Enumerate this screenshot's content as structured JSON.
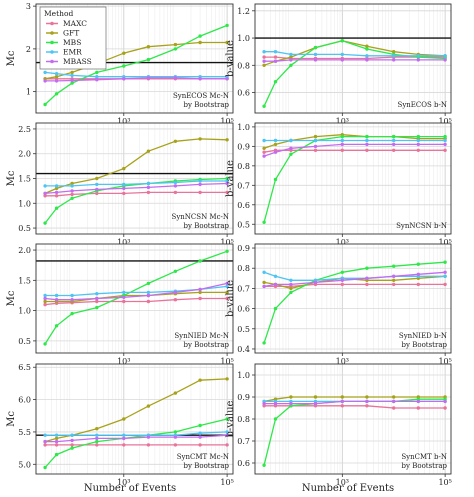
{
  "x_axis_label": "Number of Events",
  "legend": {
    "title": "Method",
    "items": [
      {
        "name": "MAXC",
        "color": "#e8749a"
      },
      {
        "name": "GFT",
        "color": "#a8a21a"
      },
      {
        "name": "MBS",
        "color": "#2ee84a"
      },
      {
        "name": "EMR",
        "color": "#4fc4f2"
      },
      {
        "name": "MBASS",
        "color": "#c46cf0"
      }
    ]
  },
  "chart_data": [
    {
      "type": "line",
      "xscale": "log",
      "xlim": [
        20,
        130000
      ],
      "xticks": [
        {
          "v": 1000,
          "label": "10³"
        },
        {
          "v": 100000,
          "label": "10⁵"
        }
      ],
      "ylabel": "Mc",
      "ylim": [
        0.5,
        3.05
      ],
      "yticks": [
        1,
        2,
        3
      ],
      "hline": 1.68,
      "annotation": [
        "SynECOS Mc-N",
        "by Bootstrap"
      ],
      "x": [
        30,
        50,
        100,
        300,
        1000,
        3000,
        10000,
        30000,
        100000
      ],
      "series": [
        {
          "name": "MAXC",
          "values": [
            1.3,
            1.3,
            1.3,
            1.3,
            1.3,
            1.3,
            1.3,
            1.3,
            1.3
          ]
        },
        {
          "name": "GFT",
          "values": [
            1.3,
            1.35,
            1.45,
            1.65,
            1.9,
            2.05,
            2.1,
            2.15,
            2.15
          ]
        },
        {
          "name": "MBS",
          "values": [
            0.7,
            0.95,
            1.2,
            1.45,
            1.6,
            1.75,
            2.0,
            2.3,
            2.55
          ]
        },
        {
          "name": "EMR",
          "values": [
            1.45,
            1.42,
            1.38,
            1.35,
            1.35,
            1.35,
            1.35,
            1.35,
            1.35
          ]
        },
        {
          "name": "MBASS",
          "values": [
            1.25,
            1.25,
            1.26,
            1.28,
            1.3,
            1.32,
            1.32,
            1.3,
            1.3
          ]
        }
      ]
    },
    {
      "type": "line",
      "xscale": "log",
      "xlim": [
        20,
        130000
      ],
      "xticks": [
        {
          "v": 1000,
          "label": "10³"
        },
        {
          "v": 100000,
          "label": "10⁵"
        }
      ],
      "ylabel": "b-value",
      "ylim": [
        0.45,
        1.25
      ],
      "yticks": [
        0.6,
        0.8,
        1.0,
        1.2
      ],
      "hline": 1.0,
      "annotation": [
        "SynECOS b-N",
        ""
      ],
      "x": [
        30,
        50,
        100,
        300,
        1000,
        3000,
        10000,
        30000,
        100000
      ],
      "series": [
        {
          "name": "MAXC",
          "values": [
            0.86,
            0.86,
            0.85,
            0.85,
            0.85,
            0.85,
            0.86,
            0.86,
            0.86
          ]
        },
        {
          "name": "GFT",
          "values": [
            0.8,
            0.83,
            0.86,
            0.93,
            0.98,
            0.94,
            0.9,
            0.88,
            0.87
          ]
        },
        {
          "name": "MBS",
          "values": [
            0.5,
            0.68,
            0.8,
            0.93,
            0.98,
            0.92,
            0.88,
            0.86,
            0.85
          ]
        },
        {
          "name": "EMR",
          "values": [
            0.9,
            0.9,
            0.88,
            0.88,
            0.88,
            0.87,
            0.87,
            0.87,
            0.87
          ]
        },
        {
          "name": "MBASS",
          "values": [
            0.83,
            0.83,
            0.84,
            0.84,
            0.84,
            0.84,
            0.84,
            0.84,
            0.84
          ]
        }
      ]
    },
    {
      "type": "line",
      "xscale": "log",
      "xlim": [
        20,
        130000
      ],
      "xticks": [
        {
          "v": 1000,
          "label": "10³"
        },
        {
          "v": 100000,
          "label": "10⁵"
        }
      ],
      "ylabel": "Mc",
      "ylim": [
        0.38,
        2.62
      ],
      "yticks": [
        0.5,
        1.0,
        1.5,
        2.0,
        2.5
      ],
      "hline": 1.6,
      "annotation": [
        "SynNCSN Mc-N",
        "by Bootstrap"
      ],
      "x": [
        30,
        50,
        100,
        300,
        1000,
        3000,
        10000,
        30000,
        100000
      ],
      "series": [
        {
          "name": "MAXC",
          "values": [
            1.15,
            1.15,
            1.18,
            1.2,
            1.2,
            1.22,
            1.22,
            1.22,
            1.22
          ]
        },
        {
          "name": "GFT",
          "values": [
            1.2,
            1.3,
            1.4,
            1.5,
            1.7,
            2.05,
            2.25,
            2.3,
            2.28
          ]
        },
        {
          "name": "MBS",
          "values": [
            0.6,
            0.9,
            1.1,
            1.25,
            1.35,
            1.4,
            1.45,
            1.48,
            1.5
          ]
        },
        {
          "name": "EMR",
          "values": [
            1.35,
            1.35,
            1.35,
            1.38,
            1.38,
            1.4,
            1.42,
            1.45,
            1.45
          ]
        },
        {
          "name": "MBASS",
          "values": [
            1.2,
            1.22,
            1.25,
            1.28,
            1.3,
            1.32,
            1.35,
            1.38,
            1.4
          ]
        }
      ]
    },
    {
      "type": "line",
      "xscale": "log",
      "xlim": [
        20,
        130000
      ],
      "xticks": [
        {
          "v": 1000,
          "label": "10³"
        },
        {
          "v": 100000,
          "label": "10⁵"
        }
      ],
      "ylabel": "b-value",
      "ylim": [
        0.45,
        1.02
      ],
      "yticks": [
        0.5,
        0.6,
        0.7,
        0.8,
        0.9,
        1.0
      ],
      "hline": null,
      "annotation": [
        "SynNCSN b-N",
        ""
      ],
      "x": [
        30,
        50,
        100,
        300,
        1000,
        3000,
        10000,
        30000,
        100000
      ],
      "series": [
        {
          "name": "MAXC",
          "values": [
            0.87,
            0.88,
            0.88,
            0.88,
            0.88,
            0.88,
            0.88,
            0.88,
            0.88
          ]
        },
        {
          "name": "GFT",
          "values": [
            0.89,
            0.91,
            0.93,
            0.95,
            0.96,
            0.95,
            0.95,
            0.94,
            0.94
          ]
        },
        {
          "name": "MBS",
          "values": [
            0.51,
            0.73,
            0.86,
            0.93,
            0.95,
            0.95,
            0.95,
            0.95,
            0.95
          ]
        },
        {
          "name": "EMR",
          "values": [
            0.93,
            0.93,
            0.93,
            0.93,
            0.93,
            0.93,
            0.93,
            0.93,
            0.93
          ]
        },
        {
          "name": "MBASS",
          "values": [
            0.85,
            0.87,
            0.89,
            0.9,
            0.91,
            0.91,
            0.91,
            0.91,
            0.91
          ]
        }
      ]
    },
    {
      "type": "line",
      "xscale": "log",
      "xlim": [
        20,
        130000
      ],
      "xticks": [
        {
          "v": 1000,
          "label": "10³"
        },
        {
          "v": 100000,
          "label": "10⁵"
        }
      ],
      "ylabel": "Mc",
      "ylim": [
        0.3,
        2.1
      ],
      "yticks": [
        0.5,
        1.0,
        1.5,
        2.0
      ],
      "hline": 1.82,
      "annotation": [
        "SynNIED Mc-N",
        "by Bootstrap"
      ],
      "x": [
        30,
        50,
        100,
        300,
        1000,
        3000,
        10000,
        30000,
        100000
      ],
      "series": [
        {
          "name": "MAXC",
          "values": [
            1.1,
            1.12,
            1.13,
            1.15,
            1.15,
            1.15,
            1.18,
            1.2,
            1.2
          ]
        },
        {
          "name": "GFT",
          "values": [
            1.15,
            1.15,
            1.15,
            1.2,
            1.25,
            1.25,
            1.28,
            1.3,
            1.3
          ]
        },
        {
          "name": "MBS",
          "values": [
            0.45,
            0.75,
            0.95,
            1.05,
            1.25,
            1.45,
            1.65,
            1.82,
            1.98
          ]
        },
        {
          "name": "EMR",
          "values": [
            1.25,
            1.25,
            1.25,
            1.28,
            1.3,
            1.3,
            1.32,
            1.35,
            1.4
          ]
        },
        {
          "name": "MBASS",
          "values": [
            1.2,
            1.18,
            1.18,
            1.2,
            1.22,
            1.25,
            1.3,
            1.35,
            1.45
          ]
        }
      ]
    },
    {
      "type": "line",
      "xscale": "log",
      "xlim": [
        20,
        130000
      ],
      "xticks": [
        {
          "v": 1000,
          "label": "10³"
        },
        {
          "v": 100000,
          "label": "10⁵"
        }
      ],
      "ylabel": "b-value",
      "ylim": [
        0.38,
        0.92
      ],
      "yticks": [
        0.4,
        0.5,
        0.6,
        0.7,
        0.8,
        0.9
      ],
      "hline": null,
      "annotation": [
        "SynNIED b-N",
        "by Bootstrap"
      ],
      "x": [
        30,
        50,
        100,
        300,
        1000,
        3000,
        10000,
        30000,
        100000
      ],
      "series": [
        {
          "name": "MAXC",
          "values": [
            0.71,
            0.71,
            0.71,
            0.72,
            0.72,
            0.72,
            0.72,
            0.72,
            0.72
          ]
        },
        {
          "name": "GFT",
          "values": [
            0.73,
            0.72,
            0.7,
            0.73,
            0.75,
            0.74,
            0.74,
            0.75,
            0.76
          ]
        },
        {
          "name": "MBS",
          "values": [
            0.43,
            0.6,
            0.68,
            0.74,
            0.78,
            0.8,
            0.81,
            0.82,
            0.83
          ]
        },
        {
          "name": "EMR",
          "values": [
            0.78,
            0.76,
            0.74,
            0.74,
            0.75,
            0.75,
            0.76,
            0.76,
            0.76
          ]
        },
        {
          "name": "MBASS",
          "values": [
            0.71,
            0.72,
            0.72,
            0.73,
            0.74,
            0.75,
            0.76,
            0.77,
            0.78
          ]
        }
      ]
    },
    {
      "type": "line",
      "xscale": "log",
      "xlim": [
        20,
        130000
      ],
      "xticks": [
        {
          "v": 1000,
          "label": "10³"
        },
        {
          "v": 100000,
          "label": "10⁵"
        }
      ],
      "ylabel": "Mc",
      "ylim": [
        4.85,
        6.55
      ],
      "yticks": [
        5.0,
        5.5,
        6.0,
        6.5
      ],
      "hline": 5.45,
      "annotation": [
        "SynCMT Mc-N",
        "by Bootstrap"
      ],
      "x": [
        30,
        50,
        100,
        300,
        1000,
        3000,
        10000,
        30000,
        100000
      ],
      "series": [
        {
          "name": "MAXC",
          "values": [
            5.3,
            5.3,
            5.3,
            5.3,
            5.3,
            5.3,
            5.3,
            5.3,
            5.3
          ]
        },
        {
          "name": "GFT",
          "values": [
            5.35,
            5.4,
            5.45,
            5.55,
            5.7,
            5.9,
            6.1,
            6.3,
            6.32
          ]
        },
        {
          "name": "MBS",
          "values": [
            4.95,
            5.15,
            5.25,
            5.35,
            5.4,
            5.45,
            5.5,
            5.6,
            5.7
          ]
        },
        {
          "name": "EMR",
          "values": [
            5.45,
            5.45,
            5.45,
            5.45,
            5.45,
            5.45,
            5.45,
            5.48,
            5.5
          ]
        },
        {
          "name": "MBASS",
          "values": [
            5.35,
            5.35,
            5.37,
            5.4,
            5.4,
            5.42,
            5.42,
            5.42,
            5.45
          ]
        }
      ]
    },
    {
      "type": "line",
      "xscale": "log",
      "xlim": [
        20,
        130000
      ],
      "xticks": [
        {
          "v": 1000,
          "label": "10³"
        },
        {
          "v": 100000,
          "label": "10⁵"
        }
      ],
      "ylabel": "b-value",
      "ylim": [
        0.55,
        1.05
      ],
      "yticks": [
        0.6,
        0.7,
        0.8,
        0.9,
        1.0
      ],
      "hline": null,
      "annotation": [
        "SynCMT b-N",
        "by Bootstrap"
      ],
      "x": [
        30,
        50,
        100,
        300,
        1000,
        3000,
        10000,
        30000,
        100000
      ],
      "series": [
        {
          "name": "MAXC",
          "values": [
            0.86,
            0.86,
            0.86,
            0.86,
            0.86,
            0.86,
            0.85,
            0.85,
            0.85
          ]
        },
        {
          "name": "GFT",
          "values": [
            0.88,
            0.89,
            0.9,
            0.9,
            0.9,
            0.9,
            0.9,
            0.9,
            0.9
          ]
        },
        {
          "name": "MBS",
          "values": [
            0.59,
            0.8,
            0.86,
            0.87,
            0.88,
            0.88,
            0.88,
            0.89,
            0.89
          ]
        },
        {
          "name": "EMR",
          "values": [
            0.88,
            0.88,
            0.88,
            0.88,
            0.88,
            0.88,
            0.88,
            0.88,
            0.88
          ]
        },
        {
          "name": "MBASS",
          "values": [
            0.87,
            0.87,
            0.87,
            0.87,
            0.88,
            0.88,
            0.88,
            0.88,
            0.88
          ]
        }
      ]
    }
  ]
}
